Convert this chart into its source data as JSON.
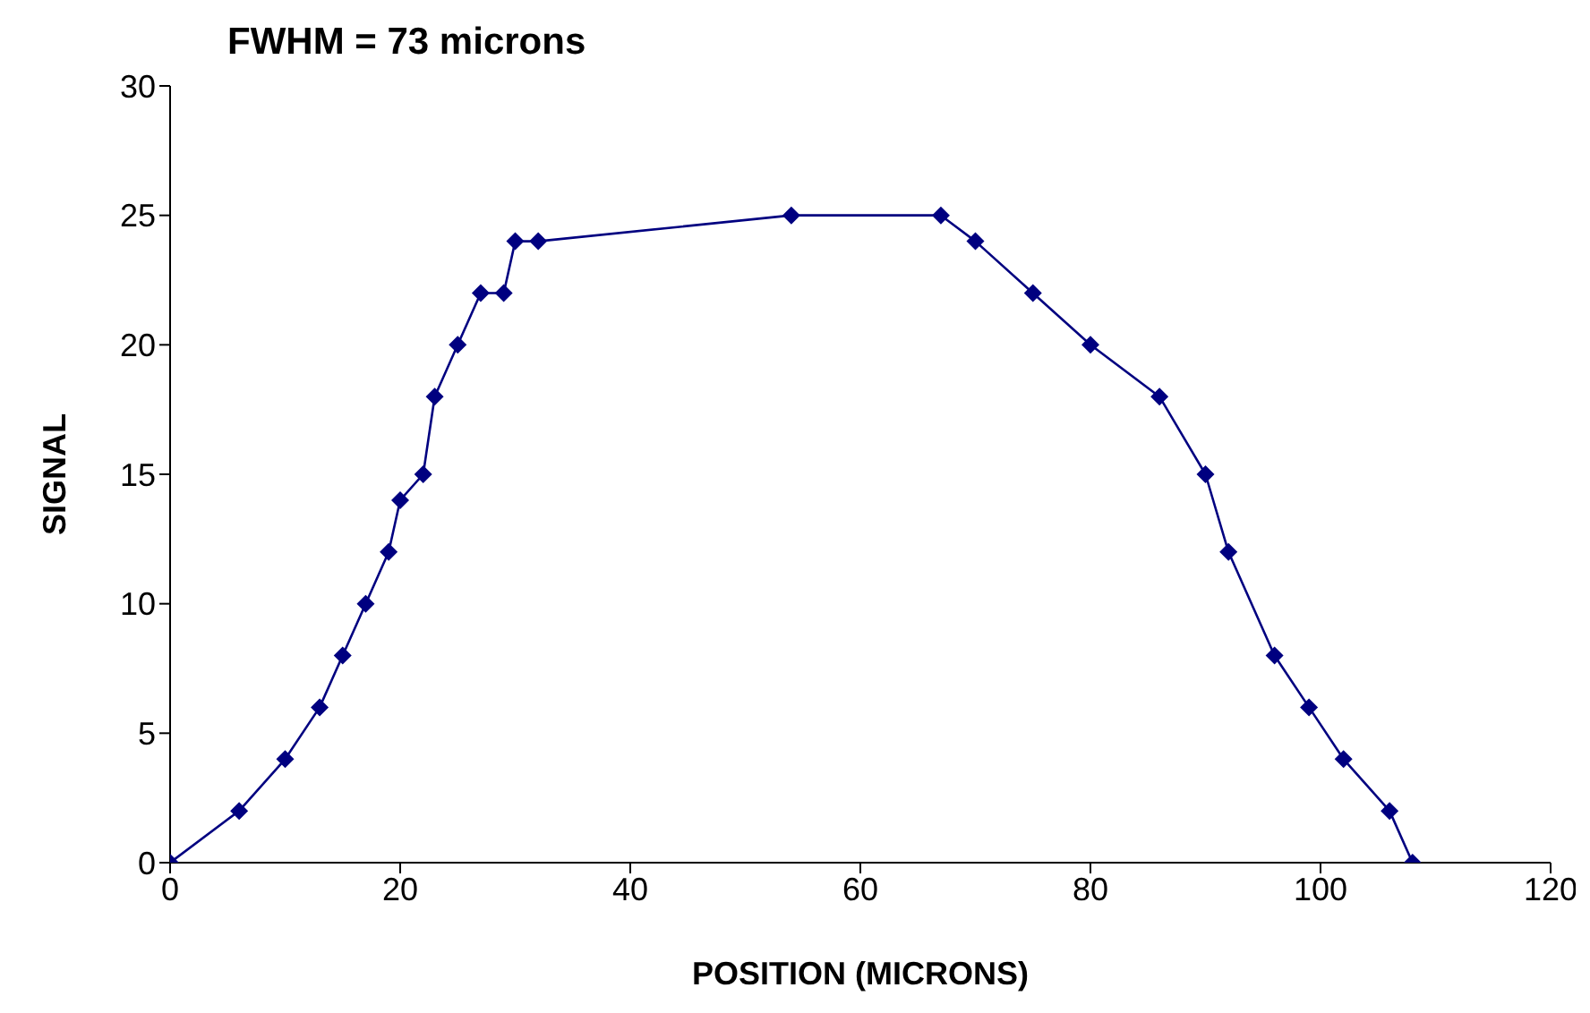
{
  "chart_data": {
    "type": "line",
    "title": "FWHM = 73 microns",
    "xlabel": "POSITION (MICRONS)",
    "ylabel": "SIGNAL",
    "x": [
      0,
      6,
      10,
      13,
      15,
      17,
      19,
      20,
      22,
      23,
      25,
      27,
      29,
      30,
      32,
      54,
      67,
      70,
      75,
      80,
      86,
      90,
      92,
      96,
      99,
      102,
      106,
      108
    ],
    "series": [
      {
        "color": "#000080",
        "values": [
          0,
          2,
          4,
          6,
          8,
          10,
          12,
          14,
          15,
          18,
          20,
          22,
          22,
          24,
          24,
          25,
          25,
          24,
          22,
          20,
          18,
          15,
          12,
          8,
          6,
          4,
          2,
          0
        ]
      }
    ],
    "xlim": [
      0,
      120
    ],
    "xticks": [
      0,
      20,
      40,
      60,
      80,
      100,
      120
    ],
    "ylim": [
      0,
      30
    ],
    "yticks": [
      0,
      5,
      10,
      15,
      20,
      25,
      30
    ],
    "grid": false,
    "legend": false,
    "marker": "diamond",
    "line_style": "solid"
  }
}
